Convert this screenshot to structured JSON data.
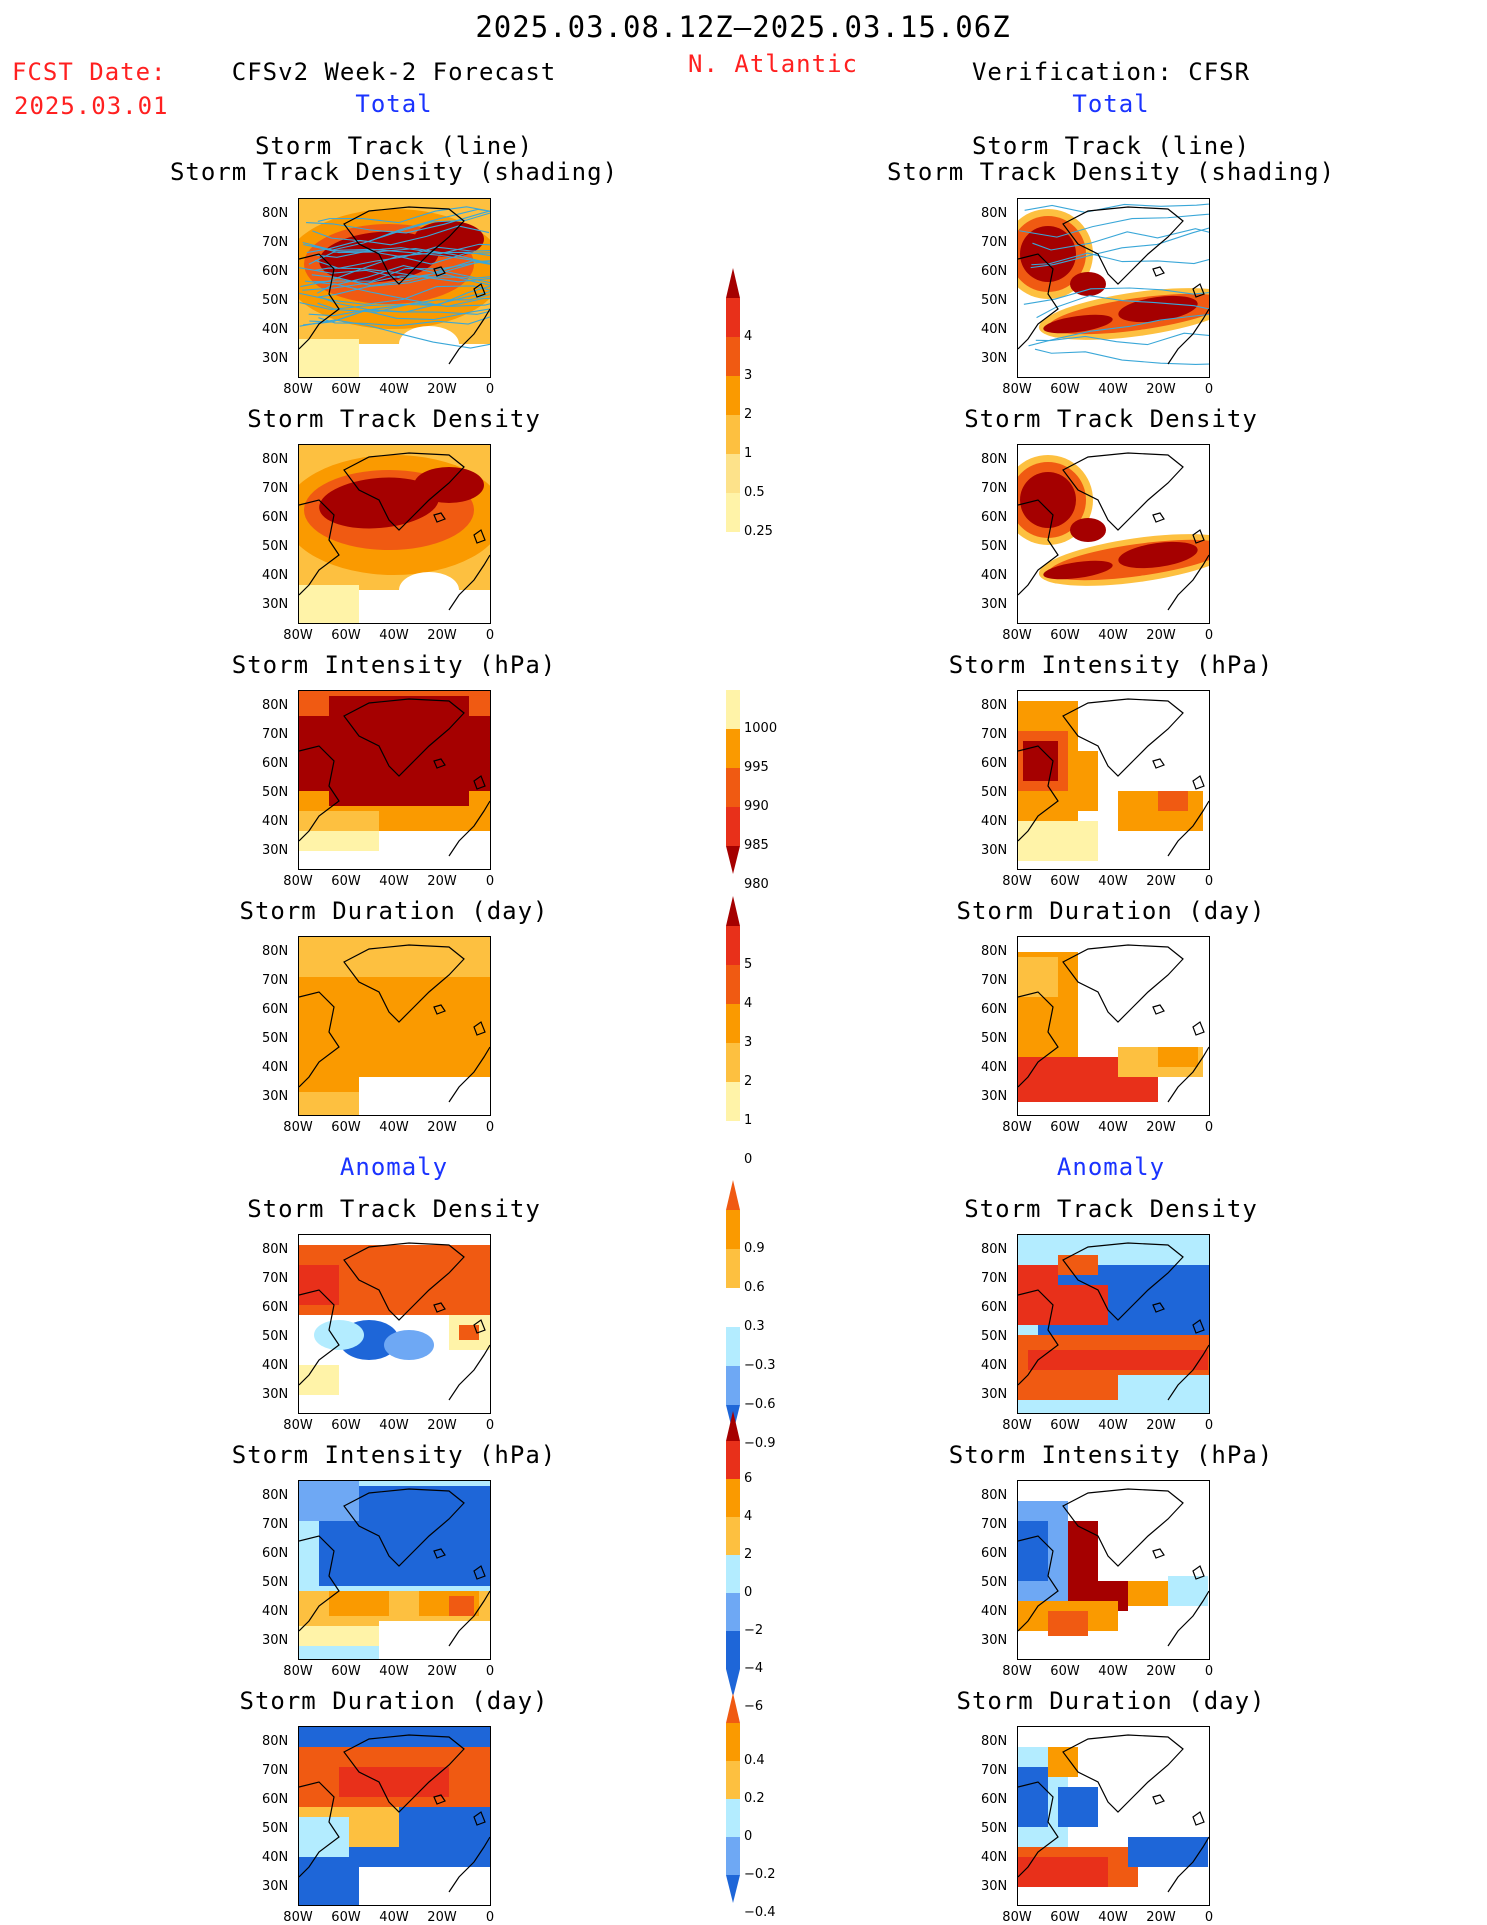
{
  "header": {
    "period": "2025.03.08.12Z–2025.03.15.06Z",
    "fcst_label": "FCST Date:",
    "fcst_date": "2025.03.01",
    "model": "CFSv2 Week-2 Forecast",
    "region": "N. Atlantic",
    "verification": "Verification: CFSR",
    "total_left": "Total",
    "total_right": "Total",
    "anomaly_left": "Anomaly",
    "anomaly_right": "Anomaly"
  },
  "axes": {
    "lat_ticks": [
      "80N",
      "70N",
      "60N",
      "50N",
      "40N",
      "30N"
    ],
    "lon_ticks": [
      "80W",
      "60W",
      "40W",
      "20W",
      "0"
    ]
  },
  "panel_titles": {
    "track_line": "Storm Track (line)",
    "track_density_shading": "Storm Track Density (shading)",
    "track_density": "Storm Track Density",
    "intensity": "Storm Intensity (hPa)",
    "duration": "Storm Duration (day)"
  },
  "colorbars": {
    "density_total": [
      "4",
      "3",
      "2",
      "1",
      "0.5",
      "0.25"
    ],
    "intensity_total": [
      "1000",
      "995",
      "990",
      "985",
      "980"
    ],
    "duration_total": [
      "5",
      "4",
      "3",
      "2",
      "1",
      "0"
    ],
    "density_anom": [
      "0.9",
      "0.6",
      "0.3",
      "−0.3",
      "−0.6",
      "−0.9"
    ],
    "intensity_anom": [
      "6",
      "4",
      "2",
      "0",
      "−2",
      "−4",
      "−6"
    ],
    "duration_anom": [
      "0.4",
      "0.2",
      "0",
      "−0.2",
      "−0.4"
    ]
  },
  "colors": {
    "dark_red": "#a50000",
    "red": "#e8301a",
    "orange_red": "#f05a12",
    "orange": "#fa9a00",
    "light_orange": "#fdc040",
    "pale_yellow": "#fff3a8",
    "light_blue": "#b3ecff",
    "mid_blue": "#6ea8f4",
    "blue": "#1e66d8",
    "track_line": "#3aa7d8"
  },
  "chart_data": [
    {
      "type": "heatmap",
      "panel": "forecast-total-track",
      "title": "Storm Track (line) / Storm Track Density (shading)",
      "xlim": [
        -80,
        0
      ],
      "ylim": [
        25,
        85
      ],
      "field": "storm track density",
      "overlay": "storm tracks"
    },
    {
      "type": "heatmap",
      "panel": "forecast-total-density",
      "title": "Storm Track Density",
      "xlim": [
        -80,
        0
      ],
      "ylim": [
        25,
        85
      ]
    },
    {
      "type": "heatmap",
      "panel": "forecast-total-intensity",
      "title": "Storm Intensity (hPa)",
      "xlim": [
        -80,
        0
      ],
      "ylim": [
        25,
        85
      ]
    },
    {
      "type": "heatmap",
      "panel": "forecast-total-duration",
      "title": "Storm Duration (day)",
      "xlim": [
        -80,
        0
      ],
      "ylim": [
        25,
        85
      ]
    },
    {
      "type": "heatmap",
      "panel": "forecast-anom-density",
      "title": "Storm Track Density",
      "xlim": [
        -80,
        0
      ],
      "ylim": [
        25,
        85
      ]
    },
    {
      "type": "heatmap",
      "panel": "forecast-anom-intensity",
      "title": "Storm Intensity (hPa)",
      "xlim": [
        -80,
        0
      ],
      "ylim": [
        25,
        85
      ]
    },
    {
      "type": "heatmap",
      "panel": "forecast-anom-duration",
      "title": "Storm Duration (day)",
      "xlim": [
        -80,
        0
      ],
      "ylim": [
        25,
        85
      ]
    },
    {
      "type": "heatmap",
      "panel": "verif-total-track",
      "title": "Storm Track (line) / Storm Track Density (shading)",
      "xlim": [
        -80,
        0
      ],
      "ylim": [
        25,
        85
      ]
    },
    {
      "type": "heatmap",
      "panel": "verif-total-density",
      "title": "Storm Track Density",
      "xlim": [
        -80,
        0
      ],
      "ylim": [
        25,
        85
      ]
    },
    {
      "type": "heatmap",
      "panel": "verif-total-intensity",
      "title": "Storm Intensity (hPa)",
      "xlim": [
        -80,
        0
      ],
      "ylim": [
        25,
        85
      ]
    },
    {
      "type": "heatmap",
      "panel": "verif-total-duration",
      "title": "Storm Duration (day)",
      "xlim": [
        -80,
        0
      ],
      "ylim": [
        25,
        85
      ]
    },
    {
      "type": "heatmap",
      "panel": "verif-anom-density",
      "title": "Storm Track Density",
      "xlim": [
        -80,
        0
      ],
      "ylim": [
        25,
        85
      ]
    },
    {
      "type": "heatmap",
      "panel": "verif-anom-intensity",
      "title": "Storm Intensity (hPa)",
      "xlim": [
        -80,
        0
      ],
      "ylim": [
        25,
        85
      ]
    },
    {
      "type": "heatmap",
      "panel": "verif-anom-duration",
      "title": "Storm Duration (day)",
      "xlim": [
        -80,
        0
      ],
      "ylim": [
        25,
        85
      ]
    }
  ]
}
